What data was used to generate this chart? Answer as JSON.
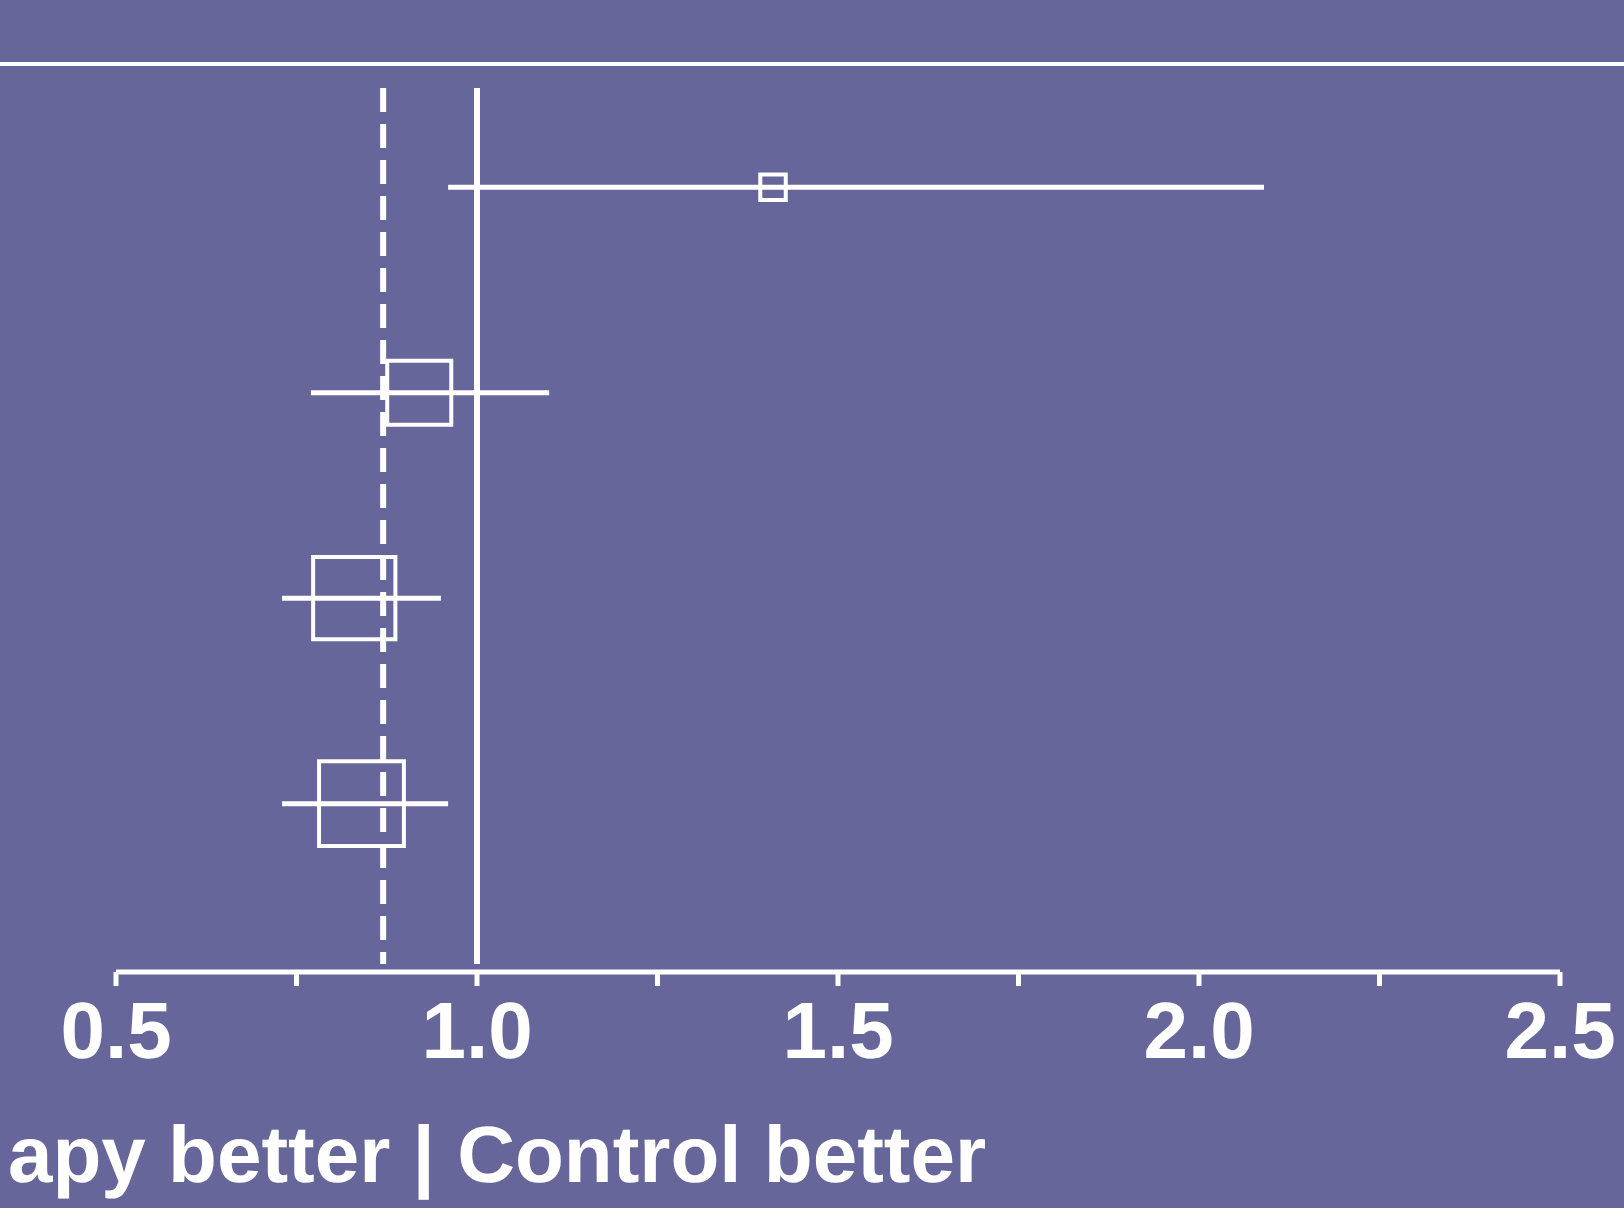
{
  "chart_data": {
    "type": "bubble",
    "orientation": "horizontal",
    "xlabel": "apy better | Control better",
    "categories": [
      null,
      null,
      null,
      null
    ],
    "values": [
      1.41,
      0.92,
      0.83,
      0.84
    ],
    "errors": [
      [
        0.96,
        2.09
      ],
      [
        0.77,
        1.1
      ],
      [
        0.73,
        0.95
      ],
      [
        0.73,
        0.96
      ]
    ],
    "sizes": [
      0.09,
      0.57,
      0.94,
      1
    ],
    "marker": "square",
    "color": "#ffffff",
    "xlim": [
      0.5,
      2.5
    ],
    "xticks": [
      0.5,
      {
        "value": 0.75,
        "label": null
      },
      {
        "value": 1,
        "label": "1.0"
      },
      {
        "value": 1.25,
        "label": null
      },
      1.5,
      {
        "value": 1.75,
        "label": null
      },
      {
        "value": 2,
        "label": "2.0"
      },
      {
        "value": 2.25,
        "label": null
      },
      2.5
    ],
    "tick_labels": "x",
    "ref_lines": [
      {
        "axis": "x",
        "value": 0.87,
        "line_style": "dashed",
        "color": "#ffffff"
      },
      {
        "axis": "x",
        "value": 1,
        "line_style": "solid",
        "color": "#ffffff"
      }
    ]
  }
}
